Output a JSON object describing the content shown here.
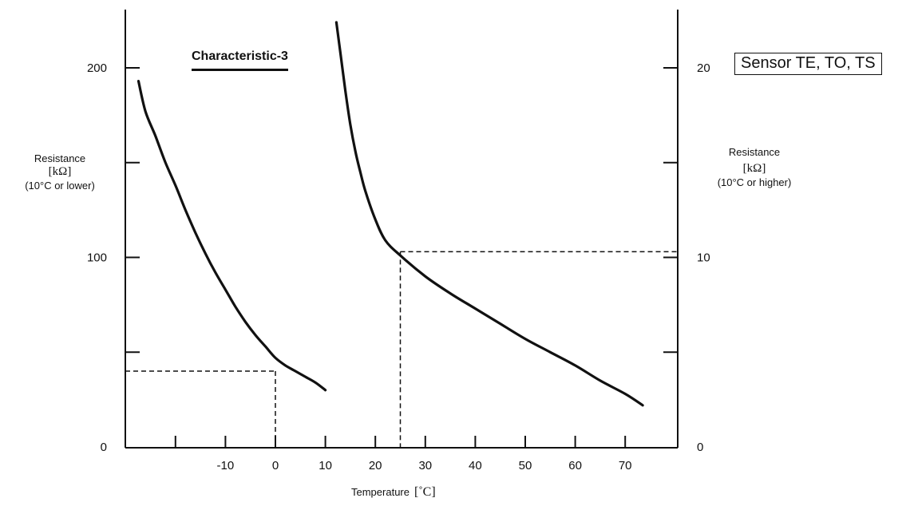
{
  "chart_data": {
    "type": "line",
    "title": "Characteristic-3",
    "annotation": "Sensor TE, TO, TS",
    "xlabel": "Temperature",
    "xlabel_unit": "[˚C]",
    "x_ticks": [
      -20,
      -10,
      0,
      10,
      20,
      30,
      40,
      50,
      60,
      70
    ],
    "x_tick_labels": [
      "-10",
      "0",
      "10",
      "20",
      "30",
      "40",
      "50",
      "60",
      "70"
    ],
    "xlim": [
      -30,
      80
    ],
    "ylabel_left": {
      "line1": "Resistance",
      "line2": "[kΩ]",
      "line3": "(10°C or lower)"
    },
    "ylabel_right": {
      "line1": "Resistance",
      "line2": "[kΩ]",
      "line3": "(10°C or higher)"
    },
    "y_left_ticks": [
      0,
      50,
      100,
      150,
      200
    ],
    "y_left_tick_labels": [
      "0",
      "100",
      "200"
    ],
    "y_left_labeled_values": [
      0,
      100,
      200
    ],
    "ylim_left": [
      0,
      220
    ],
    "y_right_ticks": [
      0,
      5,
      10,
      15,
      20
    ],
    "y_right_tick_labels": [
      "0",
      "10",
      "20"
    ],
    "y_right_labeled_values": [
      0,
      10,
      20
    ],
    "ylim_right": [
      0,
      22
    ],
    "grid": false,
    "series": [
      {
        "axis": "left",
        "x": [
          -27.4,
          -26,
          -24,
          -22,
          -20,
          -18,
          -16,
          -14,
          -12,
          -10,
          -8,
          -6,
          -4,
          -2,
          0,
          2,
          4,
          6,
          8,
          10
        ],
        "values": [
          193,
          177,
          164,
          150,
          138,
          125,
          113,
          102,
          92,
          83,
          74,
          66,
          59,
          53,
          47,
          43,
          40,
          37,
          34,
          30
        ]
      },
      {
        "axis": "right",
        "x": [
          12.2,
          13,
          14,
          15,
          16,
          17,
          18,
          20,
          22,
          25,
          30,
          35,
          40,
          45,
          50,
          55,
          60,
          65,
          70,
          73.5
        ],
        "values": [
          22.4,
          20.8,
          18.8,
          17.0,
          15.6,
          14.5,
          13.5,
          12.0,
          10.9,
          10.1,
          9.0,
          8.1,
          7.3,
          6.5,
          5.7,
          5.0,
          4.3,
          3.5,
          2.8,
          2.2
        ]
      }
    ],
    "reference_lines": [
      {
        "axis": "left",
        "x": 0,
        "y": 40
      },
      {
        "axis": "right",
        "x": 25,
        "y": 10.3
      }
    ]
  }
}
